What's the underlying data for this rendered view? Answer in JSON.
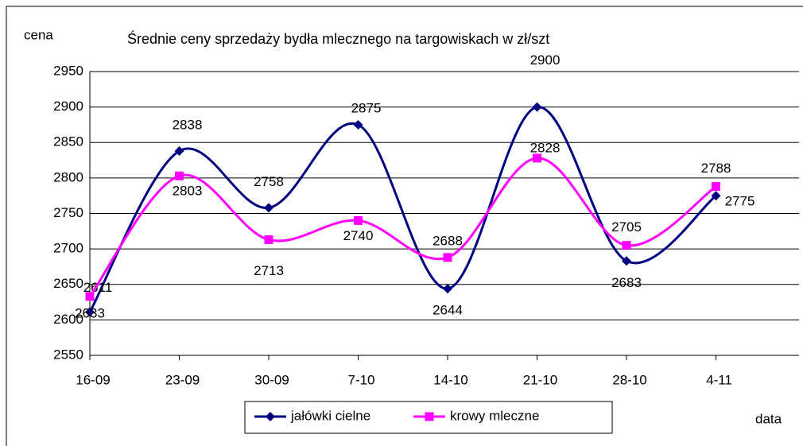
{
  "chart_data": {
    "type": "line",
    "title": "Średnie ceny sprzedaży bydła mlecznego na targowiskach w zł/szt",
    "y_label": "cena",
    "x_label": "data",
    "categories": [
      "16-09",
      "23-09",
      "30-09",
      "7-10",
      "14-10",
      "21-10",
      "28-10",
      "4-11"
    ],
    "series": [
      {
        "name": "jałówki cielne",
        "color": "#000080",
        "marker": "diamond",
        "values": [
          2611,
          2838,
          2758,
          2875,
          2644,
          2900,
          2683,
          2775
        ]
      },
      {
        "name": "krowy mleczne",
        "color": "#ff00ff",
        "marker": "square",
        "values": [
          2633,
          2803,
          2713,
          2740,
          2688,
          2828,
          2705,
          2788
        ]
      }
    ],
    "ylim": [
      2550,
      2950
    ],
    "yticks": [
      2550,
      2600,
      2650,
      2700,
      2750,
      2800,
      2850,
      2900,
      2950
    ],
    "grid": true,
    "legend": "bottom",
    "smooth": true
  }
}
